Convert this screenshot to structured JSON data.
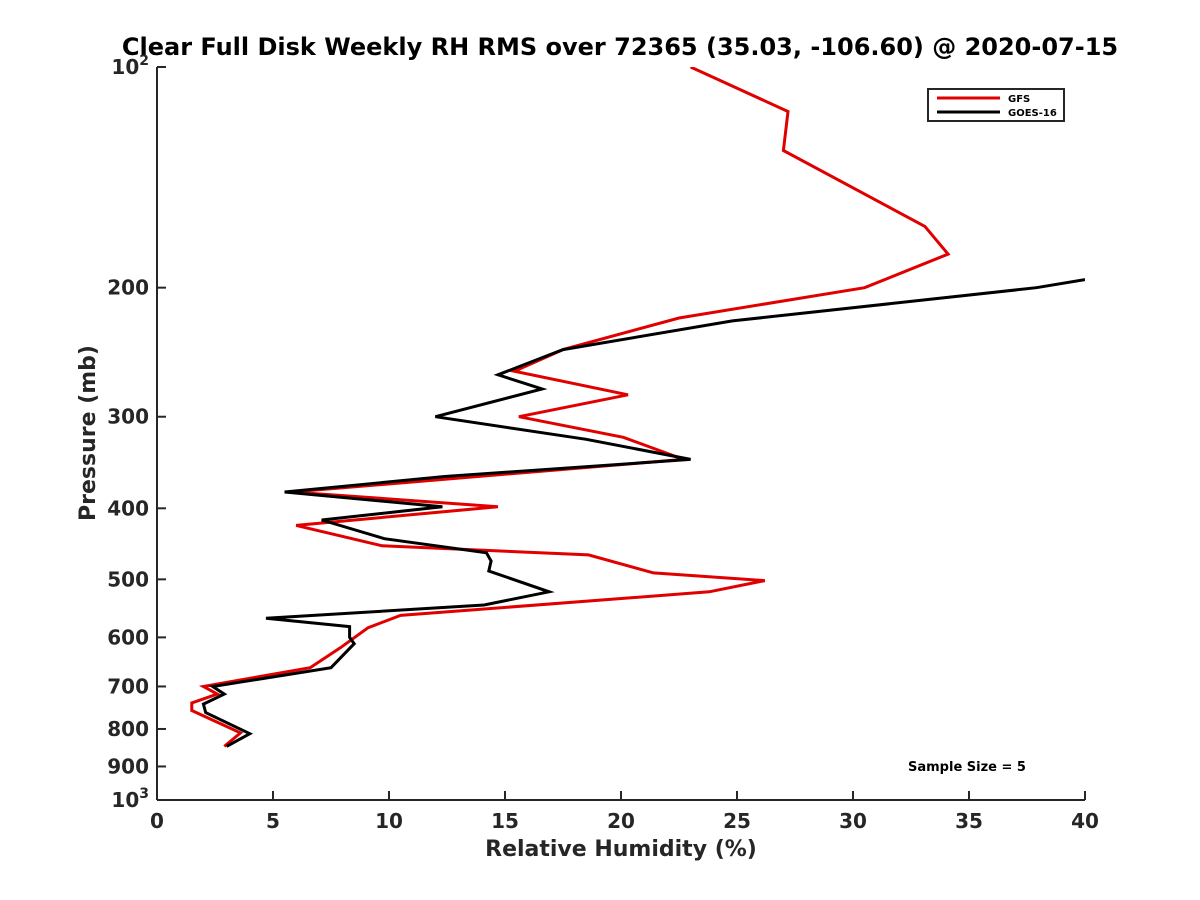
{
  "chart_data": {
    "type": "line",
    "title": "Clear Full Disk Weekly RH RMS over 72365 (35.03, -106.60) @ 2020-07-15",
    "xlabel": "Relative Humidity (%)",
    "ylabel": "Pressure (mb)",
    "xlim": [
      0,
      40
    ],
    "ylim": [
      100,
      1000
    ],
    "y_scale": "log",
    "y_reversed": true,
    "grid": false,
    "x_ticks": [
      0,
      5,
      10,
      15,
      20,
      25,
      30,
      35,
      40
    ],
    "x_tick_labels": [
      "0",
      "5",
      "10",
      "15",
      "20",
      "25",
      "30",
      "35",
      "40"
    ],
    "y_ticks": [
      100,
      200,
      300,
      400,
      500,
      600,
      700,
      800,
      900,
      1000
    ],
    "y_tick_labels": [
      {
        "base": "10",
        "exp": "2"
      },
      {
        "base": "200",
        "exp": ""
      },
      {
        "base": "300",
        "exp": ""
      },
      {
        "base": "400",
        "exp": ""
      },
      {
        "base": "500",
        "exp": ""
      },
      {
        "base": "600",
        "exp": ""
      },
      {
        "base": "700",
        "exp": ""
      },
      {
        "base": "800",
        "exp": ""
      },
      {
        "base": "900",
        "exp": ""
      },
      {
        "base": "10",
        "exp": "3"
      }
    ],
    "legend_position": "top-right",
    "series": [
      {
        "name": "GFS",
        "color": "#e00000",
        "points": [
          [
            23.0,
            100
          ],
          [
            27.2,
            115
          ],
          [
            27.0,
            130
          ],
          [
            33.1,
            165
          ],
          [
            34.1,
            180
          ],
          [
            30.5,
            200
          ],
          [
            22.5,
            220
          ],
          [
            17.5,
            243
          ],
          [
            15.4,
            260
          ],
          [
            20.3,
            280
          ],
          [
            15.6,
            300
          ],
          [
            20.1,
            320
          ],
          [
            22.7,
            343
          ],
          [
            5.8,
            380
          ],
          [
            14.7,
            398
          ],
          [
            6.0,
            422
          ],
          [
            9.7,
            450
          ],
          [
            18.6,
            463
          ],
          [
            21.4,
            490
          ],
          [
            26.2,
            502
          ],
          [
            23.8,
            520
          ],
          [
            10.5,
            560
          ],
          [
            9.1,
            582
          ],
          [
            7.9,
            620
          ],
          [
            6.6,
            660
          ],
          [
            2.0,
            700
          ],
          [
            2.6,
            717
          ],
          [
            1.5,
            737
          ],
          [
            1.5,
            755
          ],
          [
            3.6,
            810
          ],
          [
            2.9,
            845
          ]
        ]
      },
      {
        "name": "GOES-16",
        "color": "#000000",
        "points": [
          [
            40.0,
            195
          ],
          [
            37.9,
            200
          ],
          [
            24.8,
            222
          ],
          [
            17.5,
            243
          ],
          [
            14.7,
            263
          ],
          [
            16.6,
            275
          ],
          [
            12.0,
            300
          ],
          [
            18.5,
            322
          ],
          [
            23.0,
            343
          ],
          [
            12.4,
            362
          ],
          [
            5.5,
            380
          ],
          [
            12.3,
            398
          ],
          [
            7.1,
            415
          ],
          [
            9.8,
            440
          ],
          [
            14.2,
            460
          ],
          [
            14.4,
            472
          ],
          [
            14.3,
            487
          ],
          [
            16.9,
            520
          ],
          [
            14.1,
            542
          ],
          [
            4.7,
            565
          ],
          [
            8.3,
            580
          ],
          [
            8.3,
            600
          ],
          [
            8.5,
            612
          ],
          [
            7.5,
            660
          ],
          [
            2.4,
            700
          ],
          [
            2.9,
            717
          ],
          [
            2.0,
            740
          ],
          [
            2.1,
            760
          ],
          [
            4.0,
            812
          ],
          [
            3.0,
            845
          ]
        ]
      }
    ],
    "annotation": "Sample Size = 5"
  }
}
